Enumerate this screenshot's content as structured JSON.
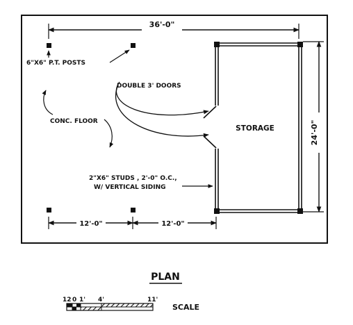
{
  "plan": {
    "dimensions": {
      "overall_width": "36'-0\"",
      "overall_depth": "24'-0\"",
      "post_spacing_left": "12'-0\"",
      "post_spacing_right": "12'-0\""
    },
    "notes": {
      "posts": "6\"X6\" P.T. POSTS",
      "doors": "DOUBLE 3' DOORS",
      "floor": "CONC. FLOOR",
      "studs_line1": "2\"X6\" STUDS , 2'-0\" O.C.,",
      "studs_line2": "W/ VERTICAL SIDING"
    },
    "room_label": "STORAGE",
    "title": "PLAN"
  },
  "scale_bar": {
    "label": "SCALE",
    "ticks": [
      "12",
      "0",
      "1'",
      "4'",
      "11'"
    ]
  },
  "colors": {
    "ink": "#111111",
    "paper": "#ffffff"
  }
}
